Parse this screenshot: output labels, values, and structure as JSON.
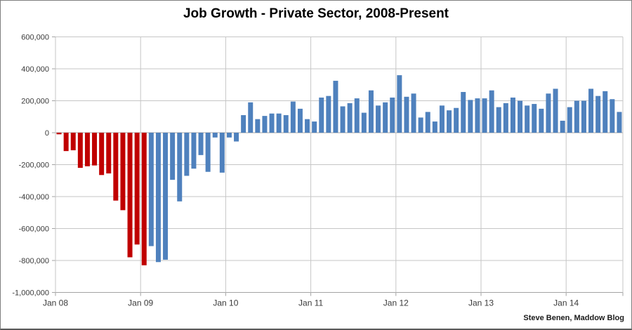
{
  "title": "Job Growth - Private Sector, 2008-Present",
  "attribution": "Steve Benen, Maddow Blog",
  "colors": {
    "bar_pre": "#C00000",
    "bar_post": "#4F81BD",
    "gridline": "#C6C6C6",
    "axis_line": "#A3A3A3",
    "tick_text": "#3A3A3A",
    "title_text": "#000000",
    "border": "#7F7F7F",
    "background": "#FFFFFF"
  },
  "chart_data": {
    "type": "bar",
    "title": "Job Growth - Private Sector, 2008-Present",
    "xlabel": "",
    "ylabel": "",
    "grid": true,
    "legend": "none",
    "ylim": [
      -1000000,
      600000
    ],
    "y_tick_step": 200000,
    "y_tick_labels": [
      "600,000",
      "400,000",
      "200,000",
      "0",
      "-200,000",
      "-400,000",
      "-600,000",
      "-800,000",
      "-1,000,000"
    ],
    "x_tick_labels": [
      "Jan 08",
      "Jan 09",
      "Jan 10",
      "Jan 11",
      "Jan 12",
      "Jan 13",
      "Jan 14"
    ],
    "months_per_x_tick": 12,
    "red_bar_count": 13,
    "series_note": "red bars = Jan 2008 through Jan 2009, blue bars = Feb 2009 through Aug 2014",
    "categories": [
      "Jan 08",
      "Feb 08",
      "Mar 08",
      "Apr 08",
      "May 08",
      "Jun 08",
      "Jul 08",
      "Aug 08",
      "Sep 08",
      "Oct 08",
      "Nov 08",
      "Dec 08",
      "Jan 09",
      "Feb 09",
      "Mar 09",
      "Apr 09",
      "May 09",
      "Jun 09",
      "Jul 09",
      "Aug 09",
      "Sep 09",
      "Oct 09",
      "Nov 09",
      "Dec 09",
      "Jan 10",
      "Feb 10",
      "Mar 10",
      "Apr 10",
      "May 10",
      "Jun 10",
      "Jul 10",
      "Aug 10",
      "Sep 10",
      "Oct 10",
      "Nov 10",
      "Dec 10",
      "Jan 11",
      "Feb 11",
      "Mar 11",
      "Apr 11",
      "May 11",
      "Jun 11",
      "Jul 11",
      "Aug 11",
      "Sep 11",
      "Oct 11",
      "Nov 11",
      "Dec 11",
      "Jan 12",
      "Feb 12",
      "Mar 12",
      "Apr 12",
      "May 12",
      "Jun 12",
      "Jul 12",
      "Aug 12",
      "Sep 12",
      "Oct 12",
      "Nov 12",
      "Dec 12",
      "Jan 13",
      "Feb 13",
      "Mar 13",
      "Apr 13",
      "May 13",
      "Jun 13",
      "Jul 13",
      "Aug 13",
      "Sep 13",
      "Oct 13",
      "Nov 13",
      "Dec 13",
      "Jan 14",
      "Feb 14",
      "Mar 14",
      "Apr 14",
      "May 14",
      "Jun 14",
      "Jul 14",
      "Aug 14"
    ],
    "values": [
      -10000,
      -115000,
      -110000,
      -220000,
      -210000,
      -205000,
      -265000,
      -255000,
      -425000,
      -485000,
      -780000,
      -700000,
      -830000,
      -710000,
      -810000,
      -795000,
      -295000,
      -430000,
      -270000,
      -225000,
      -140000,
      -245000,
      -30000,
      -250000,
      -30000,
      -55000,
      110000,
      190000,
      85000,
      105000,
      120000,
      120000,
      110000,
      195000,
      150000,
      85000,
      70000,
      220000,
      230000,
      325000,
      165000,
      185000,
      215000,
      125000,
      265000,
      170000,
      190000,
      220000,
      360000,
      225000,
      245000,
      95000,
      130000,
      70000,
      170000,
      140000,
      155000,
      255000,
      205000,
      215000,
      215000,
      265000,
      160000,
      185000,
      220000,
      200000,
      170000,
      180000,
      150000,
      245000,
      275000,
      75000,
      160000,
      200000,
      200000,
      275000,
      230000,
      260000,
      210000,
      130000
    ]
  }
}
